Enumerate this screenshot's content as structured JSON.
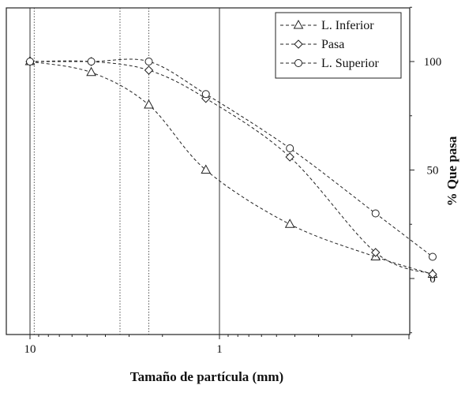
{
  "chart_data": {
    "type": "line",
    "xlabel": "Tamaño de partícula (mm)",
    "ylabel": "% Que pasa",
    "x_scale": "log",
    "x_reversed": true,
    "xlim": [
      10.8,
      0.07
    ],
    "ylim": [
      -25,
      125
    ],
    "x_tick_labels": [
      {
        "value": 10,
        "label": "10"
      },
      {
        "value": 1,
        "label": "1"
      }
    ],
    "y_tick_labels": [
      {
        "value": 0,
        "label": "0"
      },
      {
        "value": 50,
        "label": "50"
      },
      {
        "value": 100,
        "label": "100"
      }
    ],
    "reference_lines": [
      {
        "x": 10,
        "style": "solid"
      },
      {
        "x": 9.5,
        "style": "dotted"
      },
      {
        "x": 3.35,
        "style": "dotted"
      },
      {
        "x": 2.36,
        "style": "dotted"
      },
      {
        "x": 1,
        "style": "solid"
      }
    ],
    "legend_position": "top-right",
    "series": [
      {
        "name": "L. Inferior",
        "marker": "triangle",
        "color": "#222222",
        "points": [
          [
            10,
            100
          ],
          [
            4.75,
            95
          ],
          [
            2.36,
            80
          ],
          [
            1.18,
            50
          ],
          [
            0.425,
            25
          ],
          [
            0.15,
            10
          ],
          [
            0.075,
            2
          ]
        ]
      },
      {
        "name": "Pasa",
        "marker": "diamond",
        "color": "#222222",
        "points": [
          [
            10,
            100
          ],
          [
            4.75,
            100
          ],
          [
            2.36,
            96
          ],
          [
            1.18,
            83
          ],
          [
            0.425,
            56
          ],
          [
            0.15,
            12
          ],
          [
            0.075,
            2
          ]
        ]
      },
      {
        "name": "L. Superior",
        "marker": "circle",
        "color": "#222222",
        "points": [
          [
            10,
            100
          ],
          [
            4.75,
            100
          ],
          [
            2.36,
            100
          ],
          [
            1.18,
            85
          ],
          [
            0.425,
            60
          ],
          [
            0.15,
            30
          ],
          [
            0.075,
            10
          ]
        ]
      }
    ]
  }
}
